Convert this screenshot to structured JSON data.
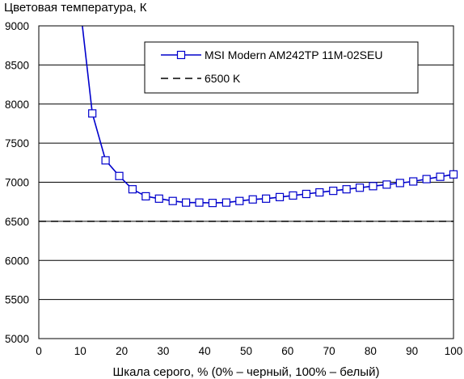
{
  "chart_data": {
    "type": "line",
    "ylabel": "Цветовая температура, К",
    "xlabel": "Шкала серого, % (0% – черный, 100% – белый)",
    "xlim": [
      0,
      100
    ],
    "ylim": [
      5000,
      9000
    ],
    "xticks": [
      "0",
      "10",
      "20",
      "30",
      "40",
      "50",
      "60",
      "70",
      "80",
      "90",
      "100"
    ],
    "yticks": [
      "5000",
      "5500",
      "6000",
      "6500",
      "7000",
      "7500",
      "8000",
      "8500",
      "9000"
    ],
    "grid": "horizontal",
    "legend_position": "top-right",
    "series": [
      {
        "name": "MSI Modern AM242TP 11M-02SEU",
        "color": "#0000cc",
        "marker": "square",
        "line_start": [
          10.5,
          9000
        ],
        "x": [
          12.9,
          16.1,
          19.4,
          22.6,
          25.8,
          29.0,
          32.3,
          35.5,
          38.7,
          41.9,
          45.2,
          48.4,
          51.6,
          54.8,
          58.1,
          61.3,
          64.5,
          67.7,
          71.0,
          74.2,
          77.4,
          80.6,
          83.9,
          87.1,
          90.3,
          93.5,
          96.8,
          100
        ],
        "y": [
          7880,
          7280,
          7080,
          6910,
          6820,
          6790,
          6760,
          6740,
          6740,
          6735,
          6740,
          6760,
          6780,
          6790,
          6810,
          6830,
          6850,
          6870,
          6890,
          6910,
          6930,
          6950,
          6970,
          6990,
          7010,
          7040,
          7070,
          7100
        ]
      },
      {
        "name": "6500 K",
        "color": "#000000",
        "style": "dashed",
        "x": [
          0,
          100
        ],
        "y": [
          6500,
          6500
        ]
      }
    ]
  }
}
